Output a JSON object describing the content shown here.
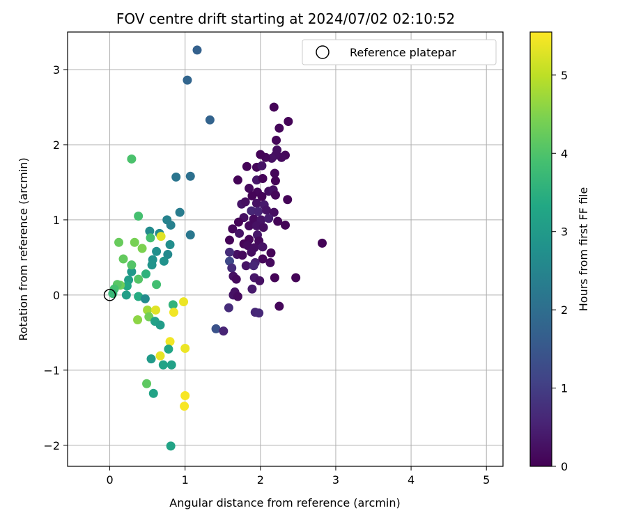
{
  "chart_data": {
    "type": "scatter",
    "title": "FOV centre drift starting at 2024/07/02 02:10:52",
    "xlabel": "Angular distance from reference (arcmin)",
    "ylabel": "Rotation from reference (arcmin)",
    "xlim": [
      -0.56,
      5.22
    ],
    "ylim": [
      -2.28,
      3.5
    ],
    "xticks": [
      0,
      1,
      2,
      3,
      4,
      5
    ],
    "yticks": [
      -2,
      -1,
      0,
      1,
      2,
      3
    ],
    "grid": true,
    "legend": {
      "position": "upper right",
      "entries": [
        "Reference platepar"
      ]
    },
    "reference_point": {
      "x": 0,
      "y": 0
    },
    "colorbar": {
      "label": "Hours from first FF file",
      "range": [
        0,
        5.55
      ],
      "ticks": [
        0,
        1,
        2,
        3,
        4,
        5
      ],
      "colormap": "viridis"
    },
    "points": [
      {
        "x": 2.18,
        "y": 2.5,
        "c": 0.05
      },
      {
        "x": 2.37,
        "y": 2.31,
        "c": 0.05
      },
      {
        "x": 2.25,
        "y": 2.22,
        "c": 0.1
      },
      {
        "x": 2.21,
        "y": 2.06,
        "c": 0.1
      },
      {
        "x": 2.22,
        "y": 1.93,
        "c": 0.2
      },
      {
        "x": 2.33,
        "y": 1.86,
        "c": 0.1
      },
      {
        "x": 2.28,
        "y": 1.83,
        "c": 0.15
      },
      {
        "x": 2.2,
        "y": 1.86,
        "c": 0.2
      },
      {
        "x": 2.15,
        "y": 1.82,
        "c": 0.25
      },
      {
        "x": 2.07,
        "y": 1.83,
        "c": 0.1
      },
      {
        "x": 2.0,
        "y": 1.87,
        "c": 0.05
      },
      {
        "x": 1.95,
        "y": 1.7,
        "c": 0.1
      },
      {
        "x": 1.82,
        "y": 1.71,
        "c": 0.05
      },
      {
        "x": 2.02,
        "y": 1.72,
        "c": 0.3
      },
      {
        "x": 2.19,
        "y": 1.62,
        "c": 0.1
      },
      {
        "x": 2.2,
        "y": 1.52,
        "c": 0.05
      },
      {
        "x": 1.95,
        "y": 1.53,
        "c": 0.35
      },
      {
        "x": 2.03,
        "y": 1.55,
        "c": 0.05
      },
      {
        "x": 1.7,
        "y": 1.53,
        "c": 0.05
      },
      {
        "x": 1.85,
        "y": 1.42,
        "c": 0.15
      },
      {
        "x": 1.96,
        "y": 1.37,
        "c": 0.1
      },
      {
        "x": 2.11,
        "y": 1.38,
        "c": 0.2
      },
      {
        "x": 2.17,
        "y": 1.4,
        "c": 0.25
      },
      {
        "x": 1.89,
        "y": 1.32,
        "c": 0.05
      },
      {
        "x": 2.02,
        "y": 1.31,
        "c": 0.05
      },
      {
        "x": 2.2,
        "y": 1.33,
        "c": 0.1
      },
      {
        "x": 2.36,
        "y": 1.27,
        "c": 0.05
      },
      {
        "x": 1.75,
        "y": 1.21,
        "c": 0.3
      },
      {
        "x": 1.8,
        "y": 1.24,
        "c": 0.2
      },
      {
        "x": 1.95,
        "y": 1.22,
        "c": 0.25
      },
      {
        "x": 2.05,
        "y": 1.2,
        "c": 0.4
      },
      {
        "x": 1.88,
        "y": 1.12,
        "c": 0.6
      },
      {
        "x": 1.97,
        "y": 1.11,
        "c": 0.55
      },
      {
        "x": 2.08,
        "y": 1.13,
        "c": 0.3
      },
      {
        "x": 2.18,
        "y": 1.1,
        "c": 0.2
      },
      {
        "x": 1.78,
        "y": 1.03,
        "c": 0.25
      },
      {
        "x": 1.91,
        "y": 1.01,
        "c": 0.15
      },
      {
        "x": 2.01,
        "y": 1.0,
        "c": 0.3
      },
      {
        "x": 2.11,
        "y": 1.02,
        "c": 0.45
      },
      {
        "x": 2.23,
        "y": 0.98,
        "c": 0.05
      },
      {
        "x": 2.33,
        "y": 0.93,
        "c": 0.05
      },
      {
        "x": 1.71,
        "y": 0.97,
        "c": 0.05
      },
      {
        "x": 1.63,
        "y": 0.88,
        "c": 0.1
      },
      {
        "x": 1.85,
        "y": 0.92,
        "c": 0.15
      },
      {
        "x": 1.95,
        "y": 0.92,
        "c": 0.25
      },
      {
        "x": 2.04,
        "y": 0.9,
        "c": 0.2
      },
      {
        "x": 1.72,
        "y": 0.82,
        "c": 0.3
      },
      {
        "x": 1.96,
        "y": 0.8,
        "c": 0.35
      },
      {
        "x": 1.85,
        "y": 0.74,
        "c": 0.1
      },
      {
        "x": 1.98,
        "y": 0.72,
        "c": 0.15
      },
      {
        "x": 1.59,
        "y": 0.73,
        "c": 0.05
      },
      {
        "x": 1.78,
        "y": 0.68,
        "c": 0.05
      },
      {
        "x": 1.83,
        "y": 0.66,
        "c": 0.15
      },
      {
        "x": 1.92,
        "y": 0.63,
        "c": 0.2
      },
      {
        "x": 2.03,
        "y": 0.64,
        "c": 0.3
      },
      {
        "x": 1.88,
        "y": 0.57,
        "c": 0.2
      },
      {
        "x": 1.69,
        "y": 0.54,
        "c": 0.25
      },
      {
        "x": 1.76,
        "y": 0.53,
        "c": 0.15
      },
      {
        "x": 1.59,
        "y": 0.57,
        "c": 0.7
      },
      {
        "x": 2.14,
        "y": 0.56,
        "c": 0.05
      },
      {
        "x": 2.03,
        "y": 0.48,
        "c": 0.1
      },
      {
        "x": 1.93,
        "y": 0.43,
        "c": 0.5
      },
      {
        "x": 2.13,
        "y": 0.43,
        "c": 0.15
      },
      {
        "x": 1.81,
        "y": 0.39,
        "c": 0.3
      },
      {
        "x": 1.91,
        "y": 0.39,
        "c": 0.6
      },
      {
        "x": 1.59,
        "y": 0.45,
        "c": 1.2
      },
      {
        "x": 1.62,
        "y": 0.36,
        "c": 0.7
      },
      {
        "x": 1.64,
        "y": 0.25,
        "c": 0.25
      },
      {
        "x": 1.68,
        "y": 0.21,
        "c": 0.15
      },
      {
        "x": 1.92,
        "y": 0.23,
        "c": 0.35
      },
      {
        "x": 2.19,
        "y": 0.23,
        "c": 0.05
      },
      {
        "x": 2.47,
        "y": 0.23,
        "c": 0.05
      },
      {
        "x": 1.99,
        "y": 0.19,
        "c": 0.25
      },
      {
        "x": 1.89,
        "y": 0.08,
        "c": 0.4
      },
      {
        "x": 1.64,
        "y": 0.0,
        "c": 0.3
      },
      {
        "x": 1.66,
        "y": 0.04,
        "c": 0.25
      },
      {
        "x": 1.7,
        "y": -0.02,
        "c": 0.15
      },
      {
        "x": 1.58,
        "y": -0.17,
        "c": 0.7
      },
      {
        "x": 1.93,
        "y": -0.23,
        "c": 0.6
      },
      {
        "x": 1.98,
        "y": -0.24,
        "c": 0.65
      },
      {
        "x": 2.25,
        "y": -0.15,
        "c": 0.1
      },
      {
        "x": 2.82,
        "y": 0.69,
        "c": 0.05
      },
      {
        "x": 1.41,
        "y": -0.45,
        "c": 1.4
      },
      {
        "x": 1.51,
        "y": -0.48,
        "c": 0.55
      },
      {
        "x": 1.16,
        "y": 3.26,
        "c": 1.7
      },
      {
        "x": 1.03,
        "y": 2.86,
        "c": 1.8
      },
      {
        "x": 1.33,
        "y": 2.33,
        "c": 1.75
      },
      {
        "x": 0.88,
        "y": 1.57,
        "c": 2.15
      },
      {
        "x": 1.07,
        "y": 1.58,
        "c": 2.05
      },
      {
        "x": 0.93,
        "y": 1.1,
        "c": 2.3
      },
      {
        "x": 0.76,
        "y": 1.0,
        "c": 2.45
      },
      {
        "x": 0.81,
        "y": 0.93,
        "c": 2.4
      },
      {
        "x": 1.07,
        "y": 0.8,
        "c": 2.2
      },
      {
        "x": 0.53,
        "y": 0.85,
        "c": 2.65
      },
      {
        "x": 0.66,
        "y": 0.82,
        "c": 2.6
      },
      {
        "x": 0.8,
        "y": 0.67,
        "c": 2.7
      },
      {
        "x": 0.62,
        "y": 0.58,
        "c": 2.75
      },
      {
        "x": 0.77,
        "y": 0.54,
        "c": 2.6
      },
      {
        "x": 0.57,
        "y": 0.47,
        "c": 2.8
      },
      {
        "x": 0.72,
        "y": 0.45,
        "c": 2.8
      },
      {
        "x": 0.56,
        "y": 0.4,
        "c": 2.85
      },
      {
        "x": 0.54,
        "y": 0.76,
        "c": 3.9
      },
      {
        "x": 0.48,
        "y": 0.28,
        "c": 3.55
      },
      {
        "x": 0.62,
        "y": 0.14,
        "c": 3.85
      },
      {
        "x": 0.38,
        "y": 0.21,
        "c": 4.05
      },
      {
        "x": 0.29,
        "y": 0.31,
        "c": 2.95
      },
      {
        "x": 0.25,
        "y": 0.2,
        "c": 3.1
      },
      {
        "x": 0.23,
        "y": 0.12,
        "c": 3.3
      },
      {
        "x": 0.29,
        "y": 0.4,
        "c": 4.05
      },
      {
        "x": 0.18,
        "y": 0.48,
        "c": 4.2
      },
      {
        "x": 0.12,
        "y": 0.7,
        "c": 4.25
      },
      {
        "x": 0.33,
        "y": 0.7,
        "c": 4.4
      },
      {
        "x": 0.43,
        "y": 0.62,
        "c": 4.45
      },
      {
        "x": 0.38,
        "y": 1.05,
        "c": 3.9
      },
      {
        "x": 0.29,
        "y": 1.81,
        "c": 3.95
      },
      {
        "x": 0.68,
        "y": 0.78,
        "c": 5.3
      },
      {
        "x": 0.14,
        "y": 0.13,
        "c": 4.3
      },
      {
        "x": 0.1,
        "y": 0.14,
        "c": 4.1
      },
      {
        "x": 0.06,
        "y": 0.08,
        "c": 3.9
      },
      {
        "x": 0.04,
        "y": 0.02,
        "c": 3.7
      },
      {
        "x": 0.22,
        "y": 0.0,
        "c": 3.1
      },
      {
        "x": 0.38,
        "y": -0.02,
        "c": 3.4
      },
      {
        "x": 0.47,
        "y": -0.05,
        "c": 2.65
      },
      {
        "x": 0.5,
        "y": -0.2,
        "c": 4.75
      },
      {
        "x": 0.52,
        "y": -0.29,
        "c": 4.35
      },
      {
        "x": 0.37,
        "y": -0.33,
        "c": 4.6
      },
      {
        "x": 0.61,
        "y": -0.2,
        "c": 5.3
      },
      {
        "x": 0.6,
        "y": -0.35,
        "c": 3.15
      },
      {
        "x": 0.67,
        "y": -0.4,
        "c": 3.05
      },
      {
        "x": 0.84,
        "y": -0.13,
        "c": 3.6
      },
      {
        "x": 0.98,
        "y": -0.09,
        "c": 5.4
      },
      {
        "x": 0.85,
        "y": -0.23,
        "c": 5.45
      },
      {
        "x": 0.8,
        "y": -0.62,
        "c": 5.45
      },
      {
        "x": 0.78,
        "y": -0.72,
        "c": 3.25
      },
      {
        "x": 0.67,
        "y": -0.81,
        "c": 5.35
      },
      {
        "x": 1.0,
        "y": -0.71,
        "c": 5.4
      },
      {
        "x": 0.55,
        "y": -0.85,
        "c": 3.0
      },
      {
        "x": 0.71,
        "y": -0.93,
        "c": 3.2
      },
      {
        "x": 0.82,
        "y": -0.93,
        "c": 3.15
      },
      {
        "x": 0.49,
        "y": -1.18,
        "c": 4.15
      },
      {
        "x": 0.58,
        "y": -1.31,
        "c": 3.2
      },
      {
        "x": 1.0,
        "y": -1.34,
        "c": 5.5
      },
      {
        "x": 0.99,
        "y": -1.48,
        "c": 5.5
      },
      {
        "x": 0.81,
        "y": -2.01,
        "c": 3.2
      }
    ]
  }
}
